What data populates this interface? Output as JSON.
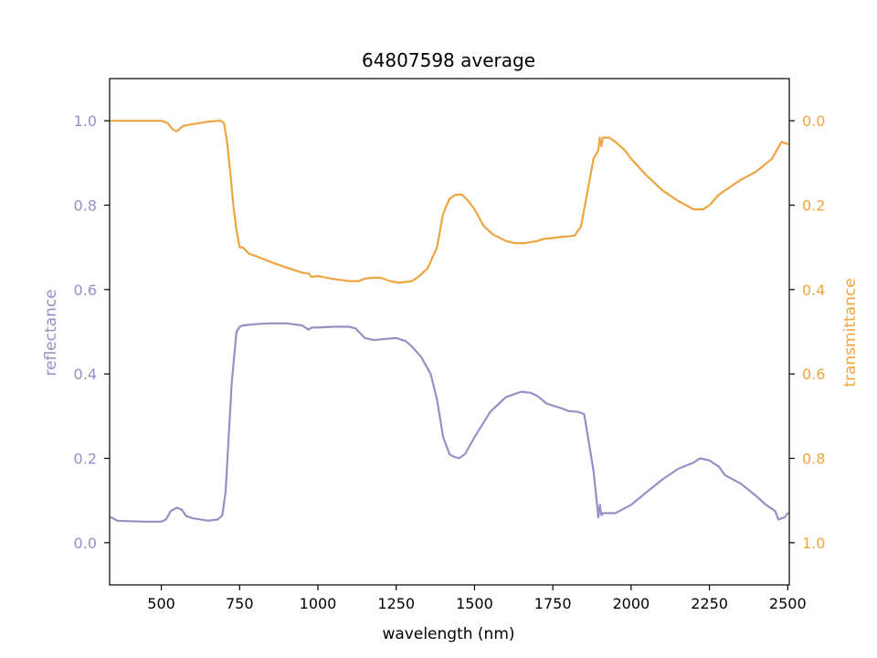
{
  "chart_data": {
    "type": "line",
    "title": "64807598 average",
    "xlabel": "wavelength (nm)",
    "ylabel": "reflectance",
    "y2label": "transmittance",
    "xlim": [
      335,
      2505
    ],
    "ylim": [
      -0.1,
      1.1
    ],
    "y2lim": [
      1.1,
      -0.1
    ],
    "y2_inverted": true,
    "x_ticks": [
      500,
      750,
      1000,
      1250,
      1500,
      1750,
      2000,
      2250,
      2500
    ],
    "y_ticks": [
      0.0,
      0.2,
      0.4,
      0.6,
      0.8,
      1.0
    ],
    "y_tick_labels": [
      "0.0",
      "0.2",
      "0.4",
      "0.6",
      "0.8",
      "1.0"
    ],
    "y2_ticks": [
      0.0,
      0.2,
      0.4,
      0.6,
      0.8,
      1.0
    ],
    "y2_tick_labels": [
      "0.0",
      "0.2",
      "0.4",
      "0.6",
      "0.8",
      "1.0"
    ],
    "grid": false,
    "colors": {
      "reflectance": "#9491c4",
      "transmittance": "#eea541",
      "axis": "#000000"
    },
    "series": [
      {
        "axis": "left",
        "color": "#9491c4",
        "x": [
          340,
          360,
          400,
          450,
          500,
          515,
          530,
          550,
          565,
          580,
          600,
          650,
          680,
          695,
          705,
          715,
          725,
          740,
          750,
          760,
          800,
          850,
          900,
          950,
          970,
          980,
          1000,
          1050,
          1100,
          1120,
          1150,
          1180,
          1200,
          1250,
          1280,
          1300,
          1330,
          1360,
          1380,
          1400,
          1420,
          1430,
          1450,
          1470,
          1500,
          1550,
          1600,
          1650,
          1680,
          1700,
          1730,
          1750,
          1780,
          1800,
          1830,
          1850,
          1860,
          1880,
          1890,
          1895,
          1900,
          1905,
          1910,
          1950,
          2000,
          2050,
          2100,
          2150,
          2200,
          2220,
          2250,
          2280,
          2300,
          2350,
          2400,
          2430,
          2460,
          2470,
          2490,
          2500
        ],
        "y": [
          0.06,
          0.052,
          0.051,
          0.05,
          0.05,
          0.055,
          0.075,
          0.083,
          0.078,
          0.063,
          0.058,
          0.052,
          0.055,
          0.065,
          0.12,
          0.25,
          0.38,
          0.5,
          0.512,
          0.515,
          0.518,
          0.52,
          0.52,
          0.515,
          0.505,
          0.51,
          0.51,
          0.512,
          0.512,
          0.508,
          0.485,
          0.48,
          0.482,
          0.485,
          0.478,
          0.465,
          0.44,
          0.4,
          0.34,
          0.25,
          0.21,
          0.205,
          0.2,
          0.21,
          0.25,
          0.31,
          0.345,
          0.358,
          0.355,
          0.348,
          0.33,
          0.325,
          0.318,
          0.312,
          0.31,
          0.305,
          0.26,
          0.17,
          0.1,
          0.06,
          0.09,
          0.065,
          0.07,
          0.07,
          0.09,
          0.12,
          0.15,
          0.175,
          0.19,
          0.2,
          0.195,
          0.18,
          0.16,
          0.14,
          0.11,
          0.09,
          0.075,
          0.055,
          0.06,
          0.07
        ]
      },
      {
        "axis": "right",
        "color": "#eea541",
        "x": [
          340,
          360,
          400,
          450,
          500,
          520,
          535,
          550,
          570,
          600,
          650,
          680,
          690,
          700,
          710,
          720,
          730,
          740,
          750,
          760,
          780,
          800,
          850,
          900,
          950,
          970,
          980,
          1000,
          1050,
          1100,
          1130,
          1150,
          1180,
          1200,
          1230,
          1260,
          1300,
          1320,
          1350,
          1380,
          1400,
          1420,
          1440,
          1460,
          1480,
          1500,
          1530,
          1560,
          1600,
          1630,
          1660,
          1700,
          1720,
          1750,
          1780,
          1800,
          1820,
          1840,
          1860,
          1880,
          1895,
          1900,
          1905,
          1910,
          1930,
          1950,
          1980,
          2000,
          2050,
          2100,
          2150,
          2200,
          2230,
          2250,
          2280,
          2300,
          2350,
          2400,
          2450,
          2480,
          2500
        ],
        "y": [
          0.0,
          0.0,
          0.0,
          0.0,
          0.0,
          0.005,
          0.02,
          0.025,
          0.012,
          0.008,
          0.002,
          0.0,
          0.0,
          0.005,
          0.05,
          0.12,
          0.2,
          0.26,
          0.3,
          0.3,
          0.315,
          0.32,
          0.335,
          0.348,
          0.36,
          0.362,
          0.37,
          0.368,
          0.375,
          0.38,
          0.38,
          0.374,
          0.372,
          0.372,
          0.38,
          0.384,
          0.38,
          0.37,
          0.35,
          0.3,
          0.22,
          0.185,
          0.175,
          0.175,
          0.19,
          0.21,
          0.25,
          0.27,
          0.285,
          0.29,
          0.29,
          0.285,
          0.28,
          0.278,
          0.275,
          0.274,
          0.272,
          0.25,
          0.17,
          0.09,
          0.07,
          0.04,
          0.06,
          0.04,
          0.04,
          0.05,
          0.07,
          0.09,
          0.13,
          0.165,
          0.19,
          0.21,
          0.21,
          0.2,
          0.175,
          0.165,
          0.14,
          0.12,
          0.09,
          0.05,
          0.055
        ]
      }
    ]
  }
}
